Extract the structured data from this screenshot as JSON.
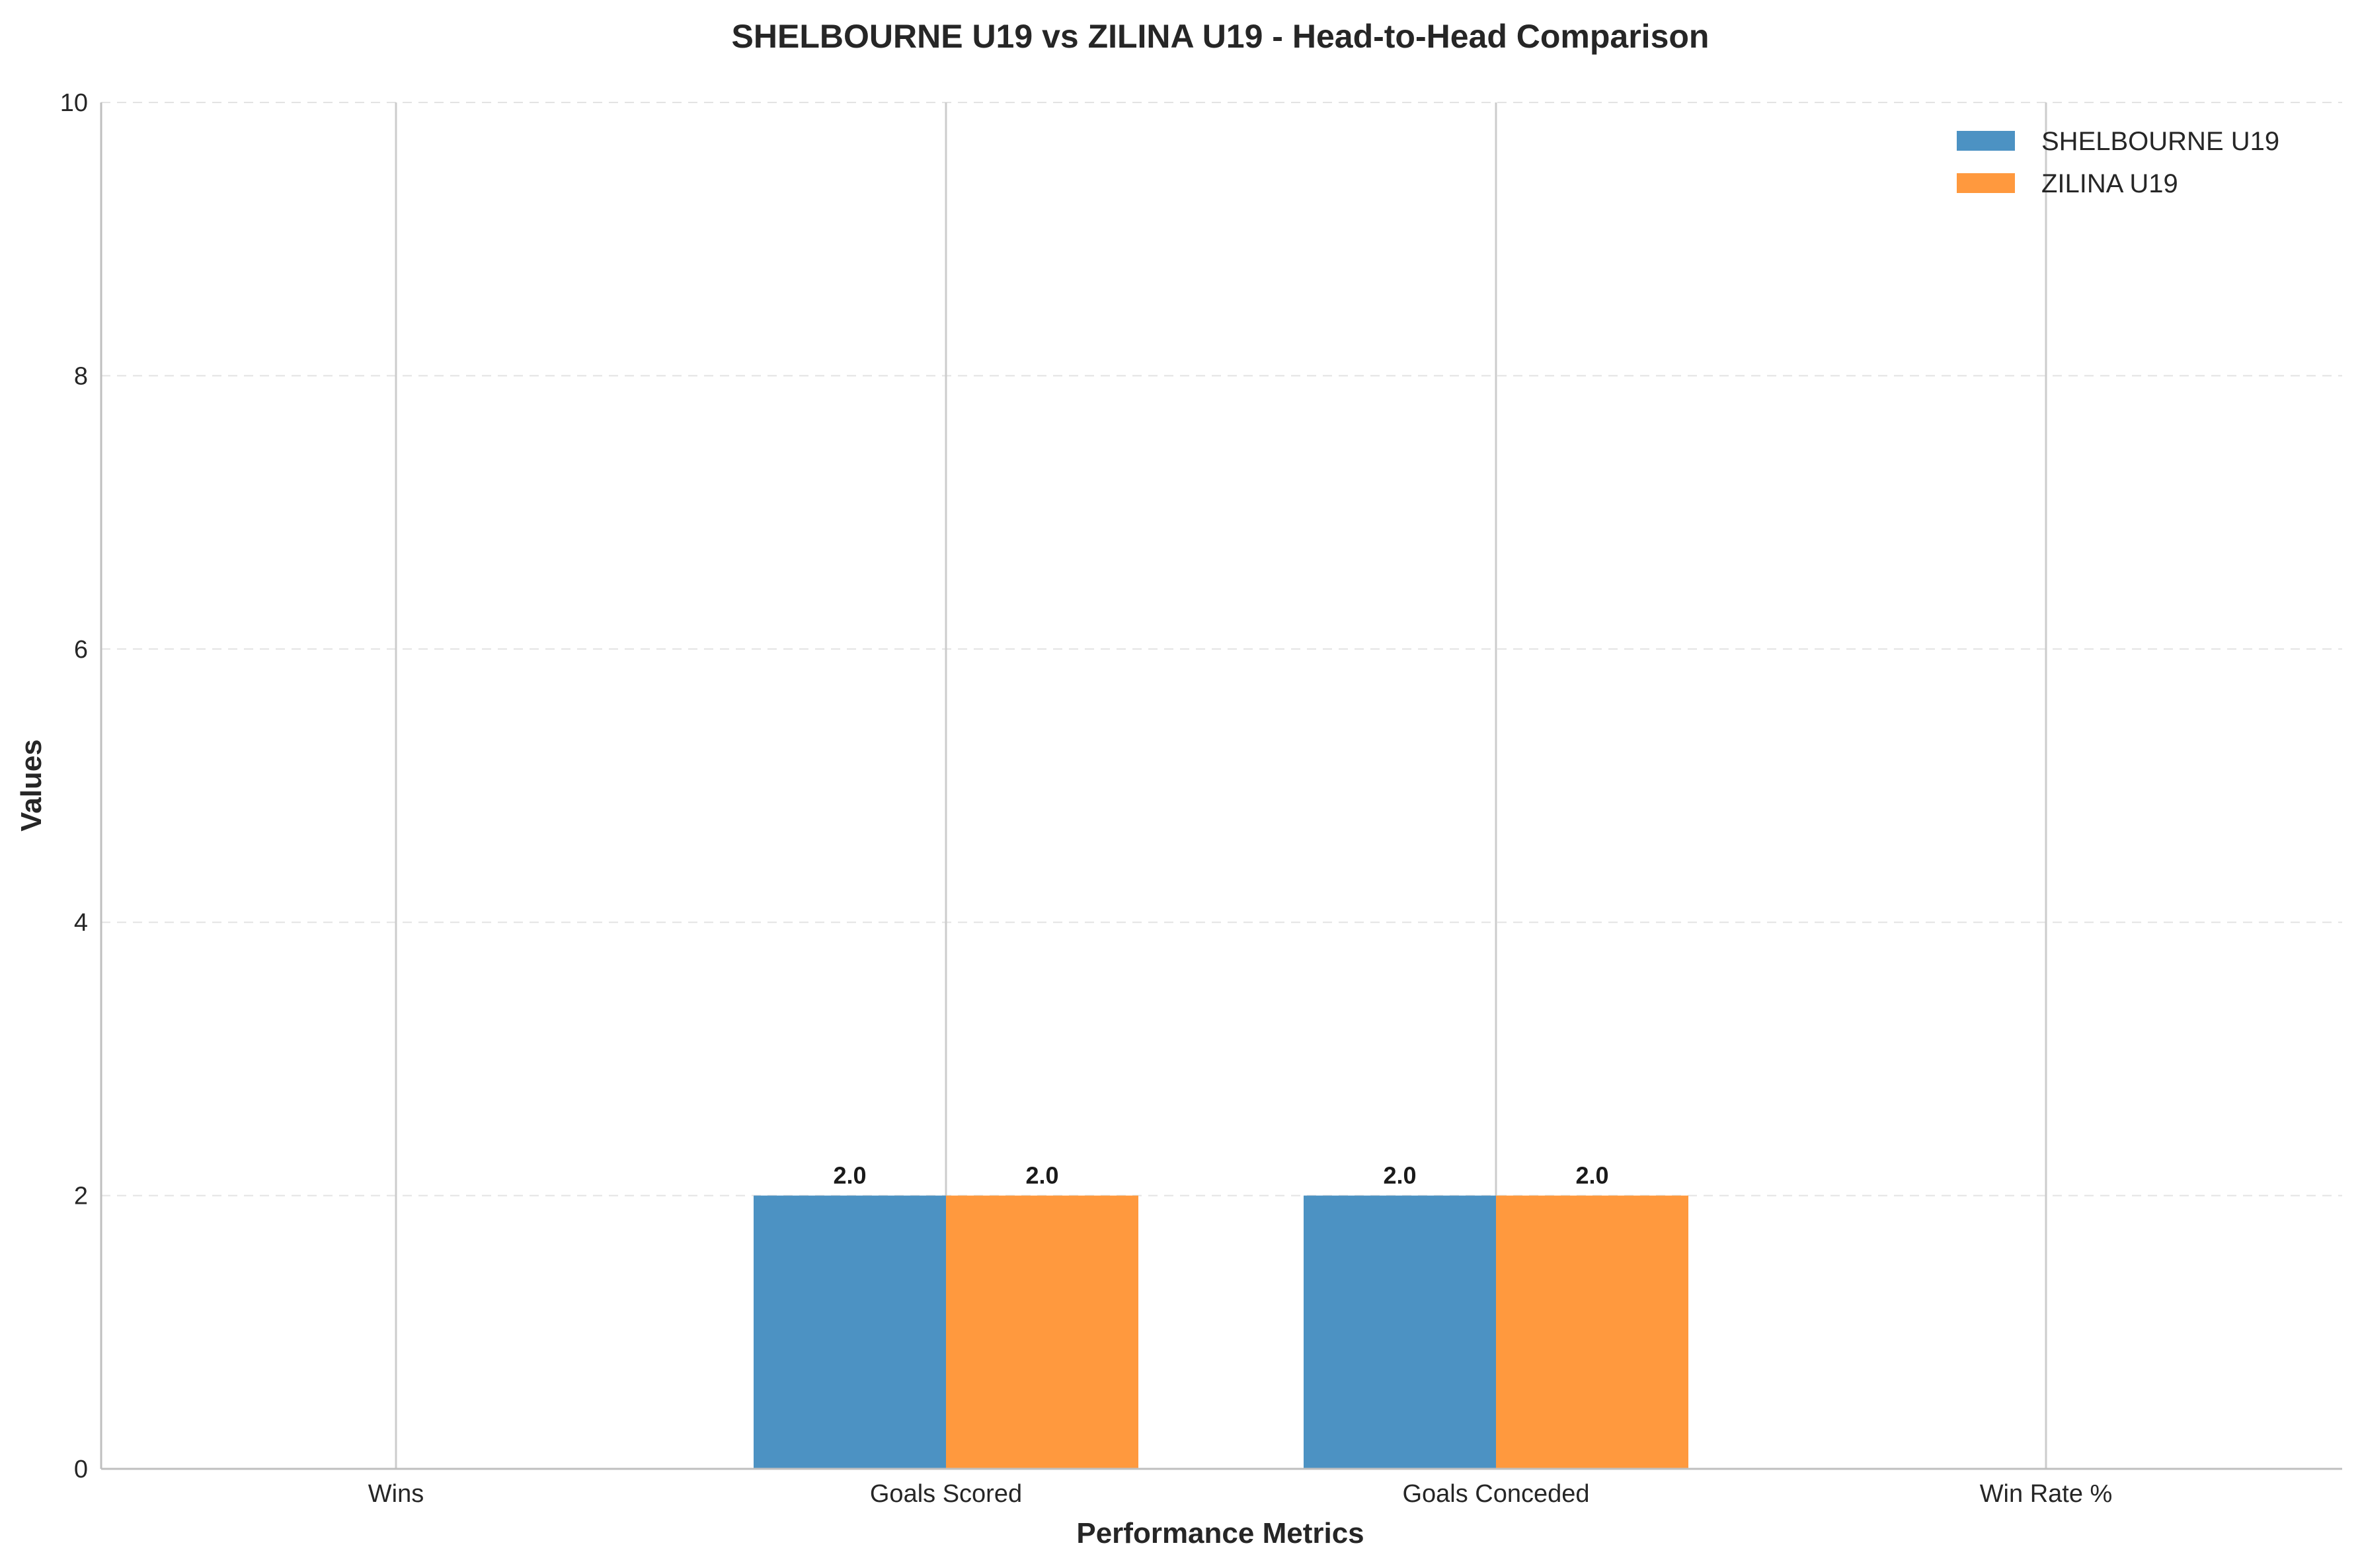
{
  "chart_data": {
    "type": "bar",
    "title": "SHELBOURNE U19 vs ZILINA U19 - Head-to-Head Comparison",
    "xlabel": "Performance Metrics",
    "ylabel": "Values",
    "categories": [
      "Wins",
      "Goals Scored",
      "Goals Conceded",
      "Win Rate %"
    ],
    "series": [
      {
        "name": "SHELBOURNE U19",
        "color": "#4c92c3",
        "values": [
          0,
          2.0,
          2.0,
          0
        ]
      },
      {
        "name": "ZILINA U19",
        "color": "#ff993e",
        "values": [
          0,
          2.0,
          2.0,
          0
        ]
      }
    ],
    "value_labels": [
      {
        "series": 0,
        "category": 1,
        "text": "2.0"
      },
      {
        "series": 1,
        "category": 1,
        "text": "2.0"
      },
      {
        "series": 0,
        "category": 2,
        "text": "2.0"
      },
      {
        "series": 1,
        "category": 2,
        "text": "2.0"
      }
    ],
    "ylim": [
      0,
      10
    ],
    "yticks": [
      "0",
      "2",
      "4",
      "6",
      "8",
      "10"
    ],
    "grid": true,
    "legend_position": "top-right"
  }
}
